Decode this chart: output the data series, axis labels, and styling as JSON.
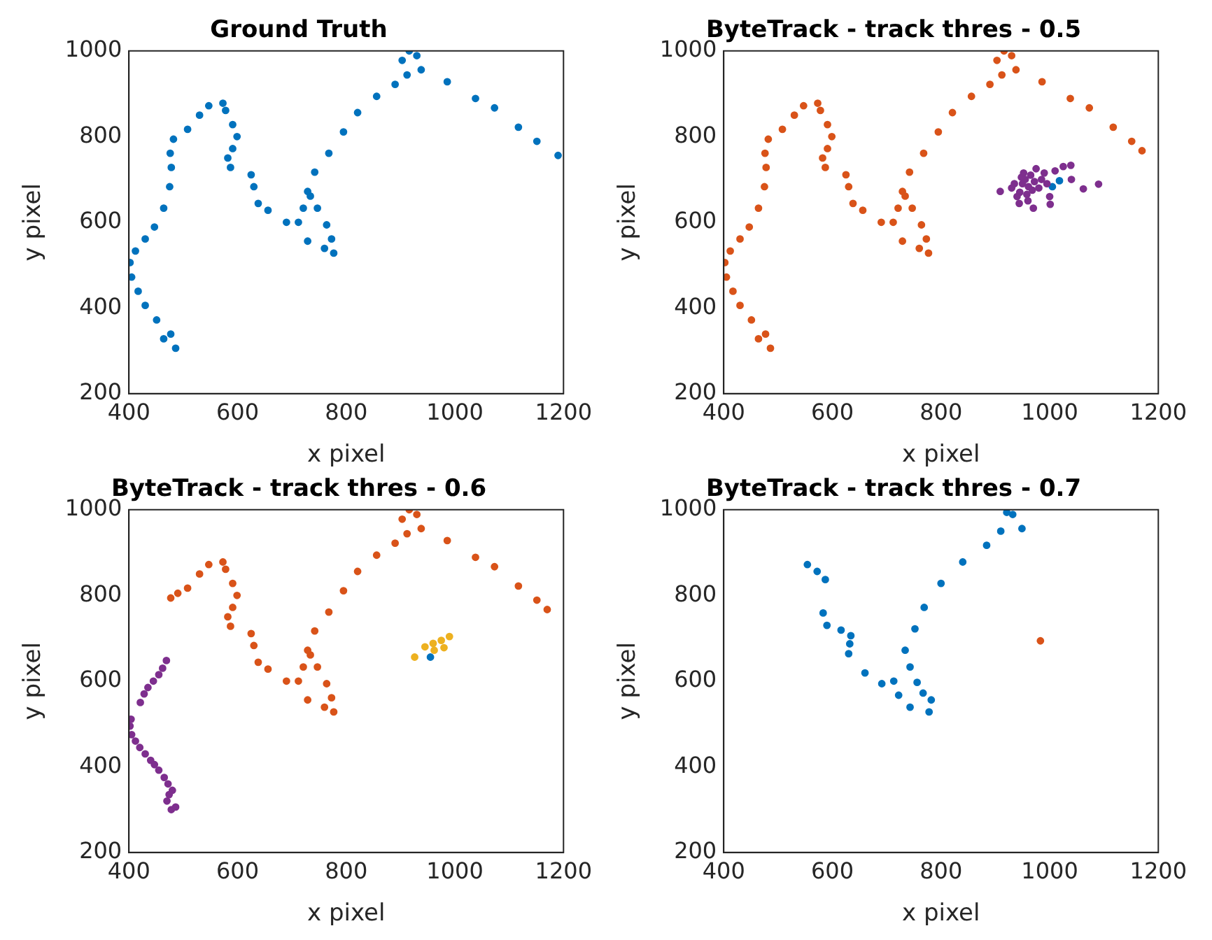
{
  "chart_data": [
    {
      "type": "scatter",
      "title": "Ground Truth",
      "xlabel": "x pixel",
      "ylabel": "y pixel",
      "xlim": [
        400,
        1200
      ],
      "ylim": [
        200,
        1000
      ],
      "xticks": [
        400,
        600,
        800,
        1000,
        1200
      ],
      "yticks": [
        200,
        400,
        600,
        800,
        1000
      ],
      "marker": "circle",
      "series": [
        {
          "color": "#0072bd",
          "x": [
            486,
            464,
            477,
            451,
            430,
            417,
            405,
            402,
            412,
            430,
            447,
            464,
            475,
            478,
            476,
            482,
            508,
            530,
            547,
            573,
            578,
            591,
            599,
            591,
            582,
            587,
            625,
            630,
            638,
            656,
            690,
            729,
            760,
            777,
            773,
            764,
            747,
            734,
            721,
            712,
            729,
            742,
            768,
            795,
            821,
            856,
            890,
            912,
            903,
            916,
            930,
            938,
            986,
            1038,
            1073,
            1117,
            1151,
            1190
          ],
          "values": [
            306,
            328,
            339,
            372,
            406,
            439,
            472,
            506,
            533,
            561,
            589,
            633,
            683,
            728,
            761,
            794,
            817,
            850,
            872,
            878,
            861,
            828,
            800,
            772,
            750,
            728,
            711,
            683,
            644,
            628,
            600,
            556,
            539,
            528,
            561,
            594,
            633,
            661,
            633,
            600,
            672,
            717,
            761,
            811,
            856,
            894,
            922,
            944,
            978,
            1000,
            989,
            956,
            928,
            889,
            867,
            822,
            789,
            756
          ]
        }
      ]
    },
    {
      "type": "scatter",
      "title": "ByteTrack - track thres - 0.5",
      "xlabel": "x pixel",
      "ylabel": "y pixel",
      "xlim": [
        400,
        1200
      ],
      "ylim": [
        200,
        1000
      ],
      "xticks": [
        400,
        600,
        800,
        1000,
        1200
      ],
      "yticks": [
        200,
        400,
        600,
        800,
        1000
      ],
      "marker": "circle",
      "series": [
        {
          "color": "#d95319",
          "x": [
            486,
            464,
            477,
            451,
            430,
            417,
            405,
            402,
            412,
            430,
            447,
            464,
            475,
            478,
            476,
            482,
            508,
            530,
            547,
            573,
            578,
            591,
            599,
            591,
            582,
            587,
            625,
            630,
            638,
            656,
            690,
            729,
            760,
            777,
            773,
            764,
            747,
            734,
            721,
            712,
            729,
            742,
            768,
            795,
            821,
            856,
            890,
            912,
            903,
            916,
            930,
            938,
            986,
            1038,
            1073,
            1117,
            1151,
            1170
          ],
          "values": [
            306,
            328,
            339,
            372,
            406,
            439,
            472,
            506,
            533,
            561,
            589,
            633,
            683,
            728,
            761,
            794,
            817,
            850,
            872,
            878,
            861,
            828,
            800,
            772,
            750,
            728,
            711,
            683,
            644,
            628,
            600,
            556,
            539,
            528,
            561,
            594,
            633,
            661,
            633,
            600,
            672,
            717,
            761,
            811,
            856,
            894,
            922,
            944,
            978,
            1000,
            989,
            956,
            928,
            889,
            867,
            822,
            789,
            767
          ]
        },
        {
          "color": "#7e2f8e",
          "x": [
            909,
            1062,
            1090,
            1039,
            970,
            1001,
            944,
            961,
            950,
            955,
            965,
            972,
            980,
            945,
            940,
            958,
            968,
            985,
            990,
            975,
            935,
            1000,
            1040,
            1010,
            960,
            948,
            930,
            995,
            1025,
            952
          ],
          "values": [
            672,
            678,
            689,
            733,
            633,
            642,
            644,
            683,
            690,
            700,
            710,
            695,
            680,
            670,
            660,
            665,
            675,
            700,
            715,
            725,
            690,
            660,
            700,
            720,
            650,
            705,
            680,
            690,
            730,
            715
          ]
        },
        {
          "color": "#0072bd",
          "x": [
            1005,
            1018
          ],
          "values": [
            683,
            697
          ]
        }
      ]
    },
    {
      "type": "scatter",
      "title": "ByteTrack - track thres - 0.6",
      "xlabel": "x pixel",
      "ylabel": "y pixel",
      "xlim": [
        400,
        1200
      ],
      "ylim": [
        200,
        1000
      ],
      "xticks": [
        400,
        600,
        800,
        1000,
        1200
      ],
      "yticks": [
        200,
        400,
        600,
        800,
        1000
      ],
      "marker": "circle",
      "series": [
        {
          "color": "#d95319",
          "x": [
            477,
            490,
            508,
            530,
            547,
            573,
            578,
            591,
            599,
            591,
            582,
            587,
            625,
            630,
            638,
            656,
            690,
            729,
            760,
            777,
            773,
            764,
            747,
            734,
            721,
            712,
            729,
            742,
            768,
            795,
            821,
            856,
            890,
            912,
            903,
            916,
            930,
            938,
            986,
            1038,
            1073,
            1117,
            1151,
            1170
          ],
          "values": [
            794,
            805,
            817,
            850,
            872,
            878,
            861,
            828,
            800,
            772,
            750,
            728,
            711,
            683,
            644,
            628,
            600,
            556,
            539,
            528,
            561,
            594,
            633,
            661,
            633,
            600,
            672,
            717,
            761,
            811,
            856,
            894,
            922,
            944,
            978,
            1000,
            989,
            956,
            928,
            889,
            867,
            822,
            789,
            767
          ]
        },
        {
          "color": "#7e2f8e",
          "x": [
            469,
            462,
            455,
            445,
            435,
            428,
            421,
            404,
            402,
            405,
            412,
            420,
            430,
            440,
            447,
            455,
            465,
            472,
            480,
            486,
            478,
            470,
            474
          ],
          "values": [
            648,
            630,
            615,
            600,
            585,
            570,
            550,
            511,
            495,
            475,
            460,
            445,
            430,
            415,
            405,
            392,
            375,
            360,
            345,
            306,
            300,
            320,
            335
          ]
        },
        {
          "color": "#edb120",
          "x": [
            926,
            945,
            960,
            975,
            990,
            962,
            980
          ],
          "values": [
            656,
            680,
            688,
            695,
            704,
            672,
            678
          ]
        },
        {
          "color": "#0072bd",
          "x": [
            955
          ],
          "values": [
            656
          ]
        }
      ]
    },
    {
      "type": "scatter",
      "title": "ByteTrack - track thres - 0.7",
      "xlabel": "x pixel",
      "ylabel": "y pixel",
      "xlim": [
        400,
        1200
      ],
      "ylim": [
        200,
        1000
      ],
      "xticks": [
        400,
        600,
        800,
        1000,
        1200
      ],
      "yticks": [
        200,
        400,
        600,
        800,
        1000
      ],
      "marker": "circle",
      "series": [
        {
          "color": "#0072bd",
          "x": [
            554,
            572,
            587,
            583,
            590,
            616,
            634,
            632,
            630,
            660,
            691,
            722,
            713,
            743,
            778,
            782,
            767,
            756,
            743,
            734,
            752,
            769,
            800,
            840,
            884,
            910,
            921,
            932,
            949
          ],
          "values": [
            872,
            856,
            837,
            759,
            730,
            719,
            706,
            687,
            664,
            619,
            594,
            567,
            600,
            539,
            528,
            556,
            572,
            597,
            633,
            672,
            722,
            772,
            828,
            878,
            917,
            950,
            994,
            989,
            956
          ]
        },
        {
          "color": "#d95319",
          "x": [
            983
          ],
          "values": [
            694
          ]
        }
      ]
    }
  ]
}
